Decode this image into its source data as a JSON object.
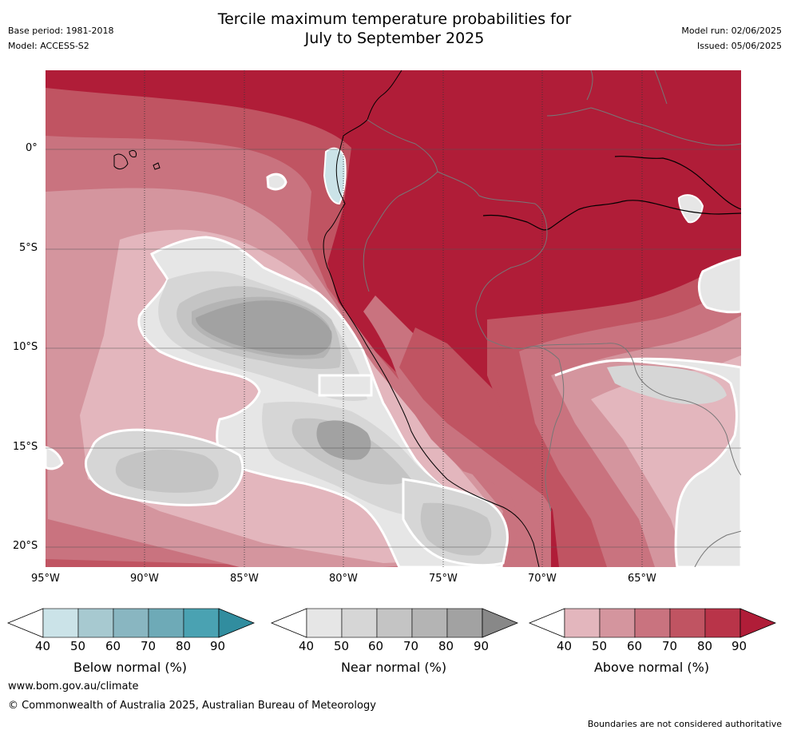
{
  "header": {
    "title_line1": "Tercile maximum temperature probabilities for",
    "title_line2": "July to September 2025",
    "base_period": "Base period: 1981-2018",
    "model": "Model: ACCESS-S2",
    "model_run": "Model run: 02/06/2025",
    "issued": "Issued: 05/06/2025"
  },
  "map": {
    "lat_labels": [
      "0°",
      "5°S",
      "10°S",
      "15°S",
      "20°S"
    ],
    "lon_labels": [
      "95°W",
      "90°W",
      "85°W",
      "80°W",
      "75°W",
      "70°W",
      "65°W"
    ],
    "background_color": "#b01d38"
  },
  "legends": [
    {
      "label": "Below normal (%)",
      "ticks": [
        "40",
        "50",
        "60",
        "70",
        "80",
        "90"
      ],
      "colors": [
        "#cbe3e8",
        "#a7c9d0",
        "#89b6c1",
        "#6eaab7",
        "#4aa2b2",
        "#318d9f"
      ]
    },
    {
      "label": "Near normal (%)",
      "ticks": [
        "40",
        "50",
        "60",
        "70",
        "80",
        "90"
      ],
      "colors": [
        "#e6e6e6",
        "#d6d6d6",
        "#c4c4c4",
        "#b4b4b4",
        "#a2a2a2",
        "#888888"
      ]
    },
    {
      "label": "Above normal (%)",
      "ticks": [
        "40",
        "50",
        "60",
        "70",
        "80",
        "90"
      ],
      "colors": [
        "#e3b6bd",
        "#d4959e",
        "#c9737f",
        "#c05462",
        "#b93449",
        "#b01d38"
      ]
    }
  ],
  "footer": {
    "website": "www.bom.gov.au/climate",
    "copyright": "© Commonwealth of Australia 2025, Australian Bureau of Meteorology",
    "disclaimer": "Boundaries are not considered authoritative"
  }
}
